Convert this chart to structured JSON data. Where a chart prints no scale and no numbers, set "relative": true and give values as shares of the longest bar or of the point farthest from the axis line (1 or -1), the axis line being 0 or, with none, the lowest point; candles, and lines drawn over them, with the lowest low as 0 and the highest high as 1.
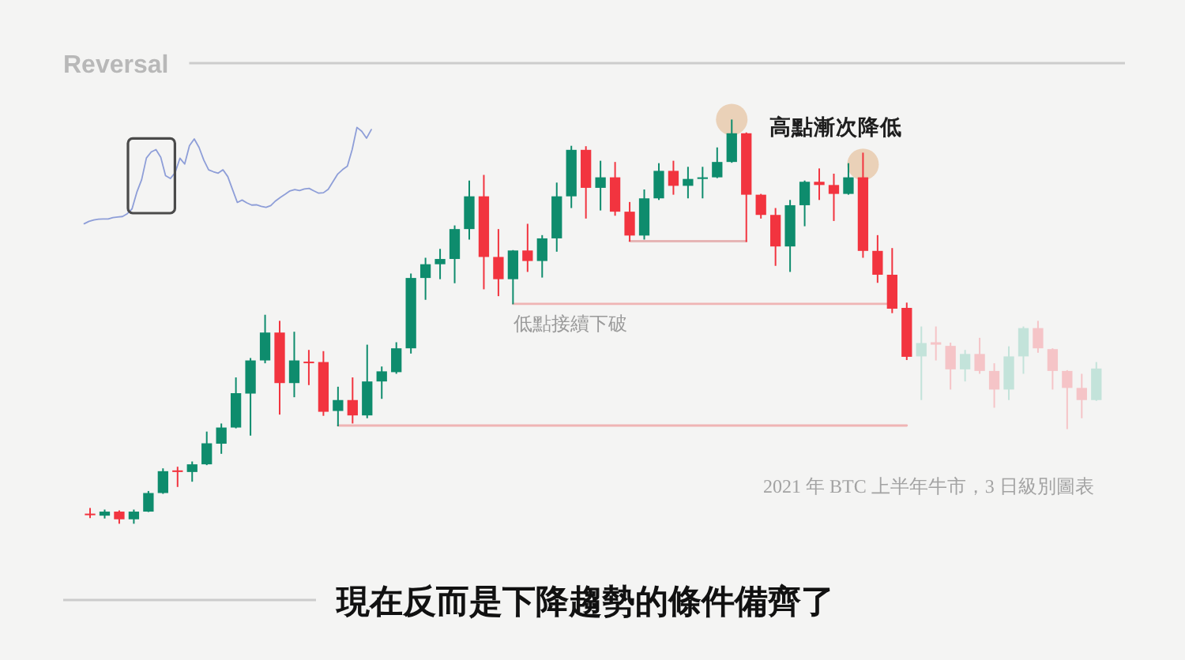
{
  "chart_data": [
    {
      "type": "candlestick",
      "title": "Reversal",
      "relative": true,
      "categories": [
        null,
        null,
        null,
        null,
        null,
        null,
        null,
        null,
        null,
        null,
        null,
        null,
        null,
        null,
        null,
        null,
        null,
        null,
        null,
        null,
        null,
        null,
        null,
        null,
        null,
        null,
        null,
        null,
        null,
        null,
        null,
        null,
        null,
        null,
        null,
        null,
        null,
        null,
        null,
        null,
        null,
        null,
        null,
        null,
        null,
        null,
        null,
        null,
        null,
        null,
        null,
        null,
        null,
        null,
        null,
        null,
        null,
        null,
        null,
        null,
        null,
        null,
        null,
        null,
        null,
        null,
        null,
        null,
        null,
        null
      ],
      "ohlc": [
        [
          0.025,
          0.039,
          0.014,
          0.022
        ],
        [
          0.02,
          0.035,
          0.013,
          0.03
        ],
        [
          0.03,
          0.033,
          0,
          0.011
        ],
        [
          0.011,
          0.035,
          0,
          0.03
        ],
        [
          0.03,
          0.081,
          0.029,
          0.076
        ],
        [
          0.076,
          0.137,
          0.074,
          0.13
        ],
        [
          0.132,
          0.141,
          0.091,
          0.128
        ],
        [
          0.128,
          0.154,
          0.104,
          0.147
        ],
        [
          0.147,
          0.228,
          0.145,
          0.199
        ],
        [
          0.198,
          0.248,
          0.173,
          0.238
        ],
        [
          0.238,
          0.362,
          0.236,
          0.323
        ],
        [
          0.322,
          0.41,
          0.218,
          0.404
        ],
        [
          0.404,
          0.517,
          0.397,
          0.473
        ],
        [
          0.473,
          0.502,
          0.27,
          0.348
        ],
        [
          0.348,
          0.475,
          0.313,
          0.404
        ],
        [
          0.401,
          0.43,
          0.343,
          0.4
        ],
        [
          0.4,
          0.427,
          0.267,
          0.277
        ],
        [
          0.279,
          0.339,
          0.241,
          0.306
        ],
        [
          0.306,
          0.362,
          0.248,
          0.268
        ],
        [
          0.268,
          0.443,
          0.261,
          0.352
        ],
        [
          0.352,
          0.389,
          0.309,
          0.377
        ],
        [
          0.375,
          0.449,
          0.371,
          0.434
        ],
        [
          0.434,
          0.619,
          0.421,
          0.608
        ],
        [
          0.608,
          0.658,
          0.554,
          0.642
        ],
        [
          0.642,
          0.68,
          0.605,
          0.655
        ],
        [
          0.655,
          0.738,
          0.595,
          0.729
        ],
        [
          0.729,
          0.849,
          0.703,
          0.81
        ],
        [
          0.81,
          0.863,
          0.58,
          0.66
        ],
        [
          0.66,
          0.729,
          0.563,
          0.605
        ],
        [
          0.605,
          0.677,
          0.543,
          0.676
        ],
        [
          0.676,
          0.742,
          0.623,
          0.65
        ],
        [
          0.65,
          0.714,
          0.609,
          0.706
        ],
        [
          0.706,
          0.844,
          0.673,
          0.81
        ],
        [
          0.81,
          0.935,
          0.781,
          0.925
        ],
        [
          0.925,
          0.934,
          0.755,
          0.831
        ],
        [
          0.831,
          0.898,
          0.775,
          0.857
        ],
        [
          0.857,
          0.895,
          0.762,
          0.772
        ],
        [
          0.772,
          0.796,
          0.698,
          0.713
        ],
        [
          0.713,
          0.827,
          0.703,
          0.805
        ],
        [
          0.805,
          0.892,
          0.801,
          0.873
        ],
        [
          0.873,
          0.898,
          0.814,
          0.836
        ],
        [
          0.836,
          0.883,
          0.805,
          0.853
        ],
        [
          0.853,
          0.883,
          0.805,
          0.857
        ],
        [
          0.857,
          0.931,
          0.855,
          0.895
        ],
        [
          0.895,
          1,
          0.893,
          0.966
        ],
        [
          0.966,
          0.968,
          0.697,
          0.814
        ],
        [
          0.814,
          0.816,
          0.755,
          0.764
        ],
        [
          0.764,
          0.781,
          0.638,
          0.686
        ],
        [
          0.686,
          0.801,
          0.623,
          0.788
        ],
        [
          0.788,
          0.849,
          0.736,
          0.846
        ],
        [
          0.846,
          0.879,
          0.801,
          0.838
        ],
        [
          0.838,
          0.866,
          0.749,
          0.816
        ],
        [
          0.816,
          0.892,
          0.814,
          0.857
        ],
        [
          0.857,
          0.918,
          0.658,
          0.675
        ],
        [
          0.675,
          0.714,
          0.596,
          0.616
        ],
        [
          0.616,
          0.682,
          0.521,
          0.532
        ],
        [
          0.534,
          0.547,
          0.405,
          0.413
        ],
        [
          0.414,
          0.488,
          0.306,
          0.447
        ],
        [
          0.449,
          0.488,
          0.404,
          0.443
        ],
        [
          0.44,
          0.448,
          0.332,
          0.382
        ],
        [
          0.382,
          0.43,
          0.352,
          0.42
        ],
        [
          0.42,
          0.46,
          0.371,
          0.378
        ],
        [
          0.378,
          0.397,
          0.287,
          0.332
        ],
        [
          0.332,
          0.439,
          0.306,
          0.414
        ],
        [
          0.414,
          0.488,
          0.371,
          0.484
        ],
        [
          0.484,
          0.502,
          0.423,
          0.434
        ],
        [
          0.432,
          0.434,
          0.332,
          0.378
        ],
        [
          0.378,
          0.38,
          0.234,
          0.336
        ],
        [
          0.336,
          0.371,
          0.261,
          0.306
        ],
        [
          0.306,
          0.4,
          0.304,
          0.384
        ]
      ],
      "colors": [
        "#f2343f",
        "#0e8c6d",
        "#f2343f",
        "#0e8c6d",
        "#0e8c6d",
        "#0e8c6d",
        "#f2343f",
        "#0e8c6d",
        "#0e8c6d",
        "#0e8c6d",
        "#0e8c6d",
        "#0e8c6d",
        "#0e8c6d",
        "#f2343f",
        "#0e8c6d",
        "#f2343f",
        "#f2343f",
        "#0e8c6d",
        "#f2343f",
        "#0e8c6d",
        "#0e8c6d",
        "#0e8c6d",
        "#0e8c6d",
        "#0e8c6d",
        "#0e8c6d",
        "#0e8c6d",
        "#0e8c6d",
        "#f2343f",
        "#f2343f",
        "#0e8c6d",
        "#f2343f",
        "#0e8c6d",
        "#0e8c6d",
        "#0e8c6d",
        "#f2343f",
        "#0e8c6d",
        "#f2343f",
        "#f2343f",
        "#0e8c6d",
        "#0e8c6d",
        "#f2343f",
        "#0e8c6d",
        "#0e8c6d",
        "#0e8c6d",
        "#0e8c6d",
        "#f2343f",
        "#f2343f",
        "#f2343f",
        "#0e8c6d",
        "#0e8c6d",
        "#f2343f",
        "#f2343f",
        "#0e8c6d",
        "#f2343f",
        "#f2343f",
        "#f2343f",
        "#f2343f",
        "#c3e3da",
        "#f5c4c7",
        "#f5c4c7",
        "#c3e3da",
        "#f5c4c7",
        "#f5c4c7",
        "#c3e3da",
        "#c3e3da",
        "#f5c4c7",
        "#f5c4c7",
        "#f5c4c7",
        "#f5c4c7",
        "#c3e3da"
      ],
      "series": [
        {
          "type": "line",
          "color": "#efb4b4",
          "values": [
            null,
            null,
            null,
            null,
            null,
            null,
            null,
            null,
            null,
            null,
            null,
            null,
            null,
            null,
            null,
            null,
            null,
            0.243,
            0.243,
            0.243,
            0.243,
            0.243,
            0.243,
            0.243,
            0.243,
            0.243,
            0.243,
            0.243,
            0.243,
            0.243,
            0.243,
            0.243,
            0.243,
            0.243,
            0.243,
            0.243,
            0.243,
            0.243,
            0.243,
            0.243,
            0.243,
            0.243,
            0.243,
            0.243,
            0.243,
            0.243,
            0.243,
            0.243,
            0.243,
            0.243,
            0.243,
            0.243,
            0.243,
            0.243,
            0.243,
            0.243,
            0.243,
            null,
            null,
            null,
            null,
            null,
            null,
            null,
            null,
            null,
            null,
            null,
            null,
            null
          ]
        },
        {
          "type": "line",
          "color": "#efb4b4",
          "values": [
            null,
            null,
            null,
            null,
            null,
            null,
            null,
            null,
            null,
            null,
            null,
            null,
            null,
            null,
            null,
            null,
            null,
            null,
            null,
            null,
            null,
            null,
            null,
            null,
            null,
            null,
            null,
            null,
            null,
            0.544,
            0.544,
            0.544,
            0.544,
            0.544,
            0.544,
            0.544,
            0.544,
            0.544,
            0.544,
            0.544,
            0.544,
            0.544,
            0.544,
            0.544,
            0.544,
            0.544,
            0.544,
            0.544,
            0.544,
            0.544,
            0.544,
            0.544,
            0.544,
            0.544,
            0.544,
            0.544,
            null,
            null,
            null,
            null,
            null,
            null,
            null,
            null,
            null,
            null,
            null,
            null,
            null,
            null
          ]
        },
        {
          "type": "line",
          "color": "#e6b5b5",
          "values": [
            null,
            null,
            null,
            null,
            null,
            null,
            null,
            null,
            null,
            null,
            null,
            null,
            null,
            null,
            null,
            null,
            null,
            null,
            null,
            null,
            null,
            null,
            null,
            null,
            null,
            null,
            null,
            null,
            null,
            null,
            null,
            null,
            null,
            null,
            null,
            null,
            null,
            0.699,
            0.699,
            0.699,
            0.699,
            0.699,
            0.699,
            0.699,
            0.699,
            0.699,
            null,
            null,
            null,
            null,
            null,
            null,
            null,
            null,
            null,
            null,
            null,
            null,
            null,
            null,
            null,
            null,
            null,
            null,
            null,
            null,
            null,
            null,
            null,
            null
          ]
        },
        {
          "type": "scatter",
          "color": "#ead1b8",
          "marker": "circle",
          "values": [
            null,
            null,
            null,
            null,
            null,
            null,
            null,
            null,
            null,
            null,
            null,
            null,
            null,
            null,
            null,
            null,
            null,
            null,
            null,
            null,
            null,
            null,
            null,
            null,
            null,
            null,
            null,
            null,
            null,
            null,
            null,
            null,
            null,
            null,
            null,
            null,
            null,
            null,
            null,
            null,
            null,
            null,
            null,
            null,
            1,
            null,
            null,
            null,
            null,
            null,
            null,
            null,
            null,
            0.889,
            null,
            null,
            null,
            null,
            null,
            null,
            null,
            null,
            null,
            null,
            null,
            null,
            null,
            null,
            null,
            null
          ]
        }
      ],
      "annotations": [
        "高點漸次降低",
        "低點接續下破",
        "2021 年 BTC 上半年牛市，3 日級別圖表",
        "現在反而是下降趨勢的條件備齊了"
      ]
    },
    {
      "type": "line",
      "relative": true,
      "color": "#8e9ed8",
      "categories": [
        null,
        null,
        null,
        null,
        null,
        null,
        null,
        null,
        null,
        null,
        null,
        null,
        null,
        null,
        null,
        null,
        null,
        null,
        null,
        null,
        null,
        null,
        null,
        null,
        null,
        null,
        null,
        null,
        null,
        null,
        null,
        null,
        null,
        null,
        null,
        null,
        null,
        null,
        null,
        null,
        null,
        null,
        null,
        null,
        null,
        null,
        null,
        null,
        null,
        null,
        null,
        null,
        null,
        null,
        null,
        null,
        null,
        null,
        null,
        null,
        null
      ],
      "values": [
        0,
        0.025,
        0.04,
        0.047,
        0.049,
        0.049,
        0.063,
        0.07,
        0.075,
        0.104,
        0.155,
        0.328,
        0.457,
        0.683,
        0.745,
        0.77,
        0.69,
        0.5,
        0.47,
        0.53,
        0.68,
        0.62,
        0.81,
        0.88,
        0.792,
        0.66,
        0.56,
        0.54,
        0.525,
        0.56,
        0.49,
        0.355,
        0.221,
        0.246,
        0.216,
        0.194,
        0.196,
        0.18,
        0.17,
        0.188,
        0.237,
        0.274,
        0.306,
        0.341,
        0.354,
        0.345,
        0.36,
        0.367,
        0.341,
        0.317,
        0.322,
        0.358,
        0.437,
        0.517,
        0.562,
        0.598,
        0.77,
        1,
        0.96,
        0.888,
        0.978
      ]
    }
  ]
}
